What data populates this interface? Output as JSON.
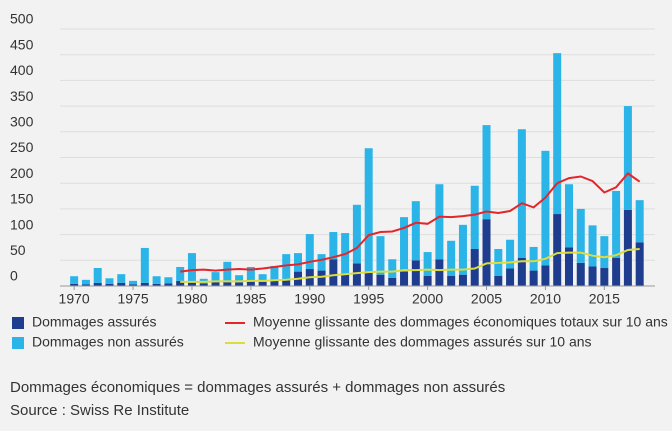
{
  "chart_data": {
    "type": "bar",
    "stacked": true,
    "x": [
      1970,
      1971,
      1972,
      1973,
      1974,
      1975,
      1976,
      1977,
      1978,
      1979,
      1980,
      1981,
      1982,
      1983,
      1984,
      1985,
      1986,
      1987,
      1988,
      1989,
      1990,
      1991,
      1992,
      1993,
      1994,
      1995,
      1996,
      1997,
      1998,
      1999,
      2000,
      2001,
      2002,
      2003,
      2004,
      2005,
      2006,
      2007,
      2008,
      2009,
      2010,
      2011,
      2012,
      2013,
      2014,
      2015,
      2016,
      2017,
      2018
    ],
    "series": [
      {
        "name": "Dommages assurés",
        "type": "bar",
        "color": "#1f3d8f",
        "values": [
          4,
          3,
          6,
          4,
          6,
          3,
          6,
          4,
          5,
          10,
          7,
          5,
          8,
          10,
          7,
          10,
          8,
          12,
          11,
          28,
          33,
          30,
          52,
          22,
          44,
          26,
          22,
          16,
          28,
          50,
          20,
          52,
          20,
          22,
          72,
          130,
          20,
          34,
          55,
          30,
          40,
          140,
          75,
          45,
          38,
          35,
          55,
          148,
          85
        ]
      },
      {
        "name": "Dommages non assurés",
        "type": "bar",
        "color": "#2bb4e8",
        "values": [
          15,
          9,
          29,
          11,
          17,
          7,
          68,
          15,
          12,
          27,
          57,
          9,
          19,
          37,
          14,
          27,
          15,
          27,
          51,
          36,
          68,
          32,
          53,
          81,
          114,
          242,
          75,
          36,
          106,
          115,
          46,
          146,
          68,
          97,
          123,
          183,
          52,
          56,
          250,
          46,
          223,
          313,
          123,
          105,
          80,
          62,
          130,
          202,
          82
        ]
      },
      {
        "name": "Moyenne glissante des dommages économiques totaux sur 10 ans",
        "type": "line",
        "color": "#e3262a",
        "values": [
          null,
          null,
          null,
          null,
          null,
          null,
          null,
          null,
          null,
          28,
          31,
          32,
          30,
          32,
          33,
          32,
          34,
          37,
          40,
          42,
          47,
          51,
          56,
          62,
          74,
          99,
          105,
          106,
          113,
          123,
          121,
          135,
          134,
          136,
          139,
          145,
          142,
          146,
          161,
          153,
          172,
          200,
          210,
          213,
          204,
          182,
          192,
          219,
          203
        ]
      },
      {
        "name": "Moyenne glissante des dommages assurés sur 10 ans",
        "type": "line",
        "color": "#dcdc3c",
        "values": [
          null,
          null,
          null,
          null,
          null,
          null,
          null,
          null,
          null,
          8,
          8,
          8,
          9,
          9,
          9,
          10,
          10,
          11,
          12,
          14,
          17,
          18,
          21,
          23,
          25,
          27,
          28,
          28,
          31,
          31,
          32,
          31,
          32,
          32,
          34,
          44,
          45,
          46,
          48,
          48,
          53,
          64,
          65,
          65,
          59,
          56,
          60,
          70,
          72
        ]
      }
    ],
    "ylim": [
      0,
      500
    ],
    "yticks": [
      0,
      50,
      100,
      150,
      200,
      250,
      300,
      350,
      400,
      450,
      500
    ],
    "xlim": [
      1968.8,
      2019.3
    ],
    "xticks": [
      1970,
      1975,
      1980,
      1985,
      1990,
      1995,
      2000,
      2005,
      2010,
      2015
    ],
    "grid": true,
    "notes": [
      "Dommages économiques = dommages assurés + dommages non assurés",
      "Source : Swiss Re Institute"
    ]
  }
}
